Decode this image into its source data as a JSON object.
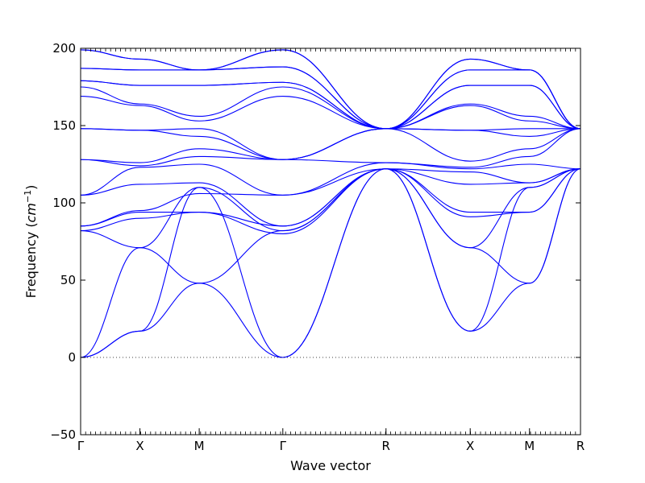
{
  "chart_data": {
    "type": "line",
    "xlabel": "Wave vector",
    "ylabel_prefix": "Frequency (",
    "ylabel_unit": "cm",
    "ylabel_unit_power": "−1",
    "ylabel_suffix": ")",
    "ylim": [
      -50,
      200
    ],
    "yticks": [
      -50,
      0,
      50,
      100,
      150,
      200
    ],
    "xlim": [
      0,
      8.43
    ],
    "path_points": [
      {
        "label": "Γ",
        "x": 0
      },
      {
        "label": "X",
        "x": 1.0
      },
      {
        "label": "M",
        "x": 2.0
      },
      {
        "label": "Γ",
        "x": 3.41
      },
      {
        "label": "R",
        "x": 5.15
      },
      {
        "label": "X",
        "x": 6.57
      },
      {
        "label": "M",
        "x": 7.57
      },
      {
        "label": "R",
        "x": 8.43
      }
    ],
    "zero_line": {
      "y": 0,
      "style": "dotted"
    },
    "band_color": "#0000ff",
    "series": [
      {
        "points": [
          [
            0,
            0
          ],
          [
            1,
            17
          ],
          [
            2,
            48
          ],
          [
            3.41,
            0
          ],
          [
            5.15,
            122
          ],
          [
            6.57,
            17
          ],
          [
            7.57,
            48
          ],
          [
            8.43,
            122
          ]
        ]
      },
      {
        "points": [
          [
            0,
            0
          ],
          [
            1,
            17
          ],
          [
            2,
            110
          ],
          [
            3.41,
            0
          ],
          [
            5.15,
            122
          ],
          [
            6.57,
            17
          ],
          [
            7.57,
            110
          ],
          [
            8.43,
            122
          ]
        ]
      },
      {
        "points": [
          [
            0,
            0
          ],
          [
            1,
            71
          ],
          [
            2,
            48
          ],
          [
            3.41,
            82
          ],
          [
            5.15,
            122
          ],
          [
            6.57,
            71
          ],
          [
            7.57,
            48
          ],
          [
            8.43,
            122
          ]
        ]
      },
      {
        "points": [
          [
            0,
            82
          ],
          [
            1,
            71
          ],
          [
            2,
            110
          ],
          [
            3.41,
            82
          ],
          [
            5.15,
            122
          ],
          [
            6.57,
            71
          ],
          [
            7.57,
            110
          ],
          [
            8.43,
            122
          ]
        ]
      },
      {
        "points": [
          [
            0,
            82
          ],
          [
            1,
            90
          ],
          [
            2,
            94
          ],
          [
            3.41,
            85
          ],
          [
            5.15,
            122
          ],
          [
            6.57,
            91
          ],
          [
            7.57,
            94
          ],
          [
            8.43,
            122
          ]
        ]
      },
      {
        "points": [
          [
            0,
            85
          ],
          [
            1,
            94
          ],
          [
            2,
            94
          ],
          [
            3.41,
            80
          ],
          [
            5.15,
            122
          ],
          [
            6.57,
            94
          ],
          [
            7.57,
            94
          ],
          [
            8.43,
            122
          ]
        ]
      },
      {
        "points": [
          [
            0,
            85
          ],
          [
            1,
            95
          ],
          [
            2,
            106
          ],
          [
            3.41,
            105
          ],
          [
            5.15,
            122
          ],
          [
            6.57,
            112
          ],
          [
            7.57,
            113
          ],
          [
            8.43,
            122
          ]
        ]
      },
      {
        "points": [
          [
            0,
            105
          ],
          [
            1,
            112
          ],
          [
            2,
            113
          ],
          [
            3.41,
            85
          ],
          [
            5.15,
            122
          ],
          [
            6.57,
            120
          ],
          [
            7.57,
            113
          ],
          [
            8.43,
            122
          ]
        ]
      },
      {
        "points": [
          [
            0,
            105
          ],
          [
            1,
            123
          ],
          [
            2,
            125
          ],
          [
            3.41,
            105
          ],
          [
            5.15,
            126
          ],
          [
            6.57,
            122
          ],
          [
            7.57,
            125
          ],
          [
            8.43,
            122
          ]
        ]
      },
      {
        "points": [
          [
            0,
            128
          ],
          [
            1,
            124
          ],
          [
            2,
            130
          ],
          [
            3.41,
            128
          ],
          [
            5.15,
            126
          ],
          [
            6.57,
            123
          ],
          [
            7.57,
            130
          ],
          [
            8.43,
            148
          ]
        ]
      },
      {
        "points": [
          [
            0,
            128
          ],
          [
            1,
            126
          ],
          [
            2,
            135
          ],
          [
            3.41,
            128
          ],
          [
            5.15,
            148
          ],
          [
            6.57,
            127
          ],
          [
            7.57,
            135
          ],
          [
            8.43,
            148
          ]
        ]
      },
      {
        "points": [
          [
            0,
            148
          ],
          [
            1,
            147
          ],
          [
            2,
            143
          ],
          [
            3.41,
            128
          ],
          [
            5.15,
            148
          ],
          [
            6.57,
            147
          ],
          [
            7.57,
            143
          ],
          [
            8.43,
            148
          ]
        ]
      },
      {
        "points": [
          [
            0,
            148
          ],
          [
            1,
            147
          ],
          [
            2,
            148
          ],
          [
            3.41,
            128
          ],
          [
            5.15,
            148
          ],
          [
            6.57,
            147
          ],
          [
            7.57,
            148
          ],
          [
            8.43,
            148
          ]
        ]
      },
      {
        "points": [
          [
            0,
            169
          ],
          [
            1,
            163
          ],
          [
            2,
            153
          ],
          [
            3.41,
            169
          ],
          [
            5.15,
            148
          ],
          [
            6.57,
            163
          ],
          [
            7.57,
            153
          ],
          [
            8.43,
            148
          ]
        ]
      },
      {
        "points": [
          [
            0,
            175
          ],
          [
            1,
            164
          ],
          [
            2,
            156
          ],
          [
            3.41,
            175
          ],
          [
            5.15,
            148
          ],
          [
            6.57,
            164
          ],
          [
            7.57,
            156
          ],
          [
            8.43,
            148
          ]
        ]
      },
      {
        "points": [
          [
            0,
            179
          ],
          [
            1,
            176
          ],
          [
            2,
            176
          ],
          [
            3.41,
            178
          ],
          [
            5.15,
            148
          ],
          [
            6.57,
            176
          ],
          [
            7.57,
            176
          ],
          [
            8.43,
            148
          ]
        ]
      },
      {
        "points": [
          [
            0,
            179
          ],
          [
            1,
            176
          ],
          [
            2,
            176
          ],
          [
            3.41,
            178
          ],
          [
            5.15,
            148
          ],
          [
            6.57,
            176
          ],
          [
            7.57,
            176
          ],
          [
            8.43,
            148
          ]
        ]
      },
      {
        "points": [
          [
            0,
            187
          ],
          [
            1,
            186
          ],
          [
            2,
            186
          ],
          [
            3.41,
            188
          ],
          [
            5.15,
            148
          ],
          [
            6.57,
            186
          ],
          [
            7.57,
            186
          ],
          [
            8.43,
            148
          ]
        ]
      },
      {
        "points": [
          [
            0,
            187
          ],
          [
            1,
            186
          ],
          [
            2,
            186
          ],
          [
            3.41,
            188
          ],
          [
            5.15,
            148
          ],
          [
            6.57,
            186
          ],
          [
            7.57,
            186
          ],
          [
            8.43,
            148
          ]
        ]
      },
      {
        "points": [
          [
            0,
            199
          ],
          [
            1,
            193
          ],
          [
            2,
            186
          ],
          [
            3.41,
            199
          ],
          [
            5.15,
            148
          ],
          [
            6.57,
            193
          ],
          [
            7.57,
            186
          ],
          [
            8.43,
            148
          ]
        ]
      },
      {
        "points": [
          [
            0,
            199
          ],
          [
            1,
            193
          ],
          [
            2,
            186
          ],
          [
            3.41,
            199
          ],
          [
            5.15,
            148
          ],
          [
            6.57,
            193
          ],
          [
            7.57,
            186
          ],
          [
            8.43,
            148
          ]
        ]
      }
    ]
  }
}
